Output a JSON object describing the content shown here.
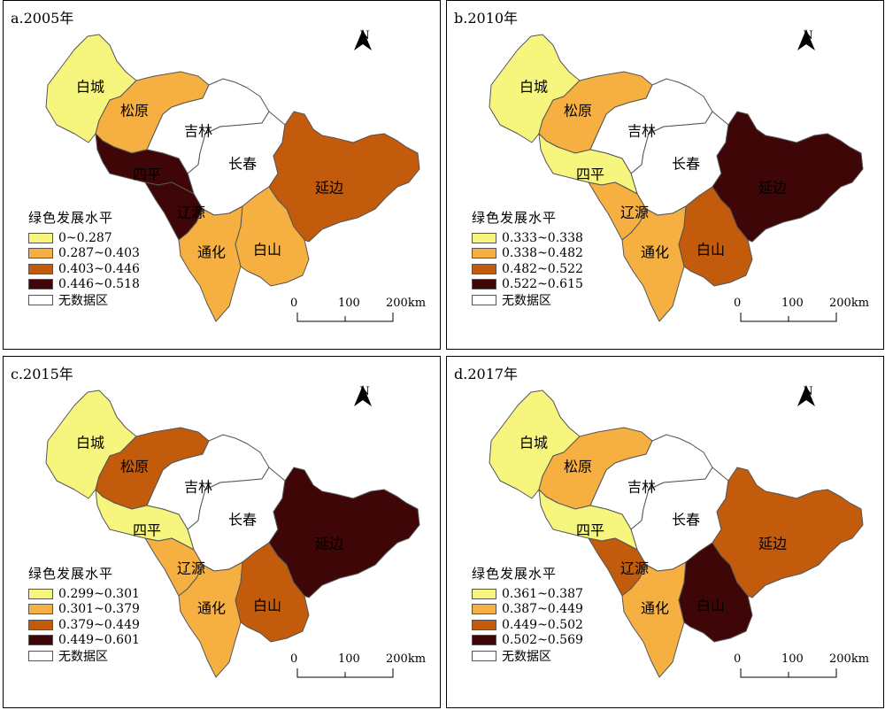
{
  "legend_title": "绿色发展水平",
  "north_label": "N",
  "scale_labels": [
    "0",
    "100",
    "200km"
  ],
  "colors": {
    "c1": "#f6f57e",
    "c2": "#f6b042",
    "c3": "#c25b0c",
    "c4": "#3e0606",
    "nodata": "#ffffff"
  },
  "region_names": {
    "baicheng": "白城",
    "songyuan": "松原",
    "jilin": "吉林",
    "changchun": "长春",
    "siping": "四平",
    "liaoyuan": "辽源",
    "tonghua": "通化",
    "baishan": "白山",
    "yanbian": "延边"
  },
  "panels": [
    {
      "title": "a.2005年",
      "legend": [
        "0~0.287",
        "0.287~0.403",
        "0.403~0.446",
        "0.446~0.518",
        "无数据区"
      ],
      "classes": {
        "baicheng": 1,
        "songyuan": 2,
        "siping": 4,
        "liaoyuan": 4,
        "tonghua": 2,
        "baishan": 2,
        "yanbian": 3,
        "jilin": 0,
        "changchun": 0
      }
    },
    {
      "title": "b.2010年",
      "legend": [
        "0.333~0.338",
        "0.338~0.482",
        "0.482~0.522",
        "0.522~0.615",
        "无数据区"
      ],
      "classes": {
        "baicheng": 1,
        "songyuan": 2,
        "siping": 1,
        "liaoyuan": 2,
        "tonghua": 2,
        "baishan": 3,
        "yanbian": 4,
        "jilin": 0,
        "changchun": 0
      }
    },
    {
      "title": "c.2015年",
      "legend": [
        "0.299~0.301",
        "0.301~0.379",
        "0.379~0.449",
        "0.449~0.601",
        "无数据区"
      ],
      "classes": {
        "baicheng": 1,
        "songyuan": 3,
        "siping": 1,
        "liaoyuan": 2,
        "tonghua": 2,
        "baishan": 3,
        "yanbian": 4,
        "jilin": 0,
        "changchun": 0
      }
    },
    {
      "title": "d.2017年",
      "legend": [
        "0.361~0.387",
        "0.387~0.449",
        "0.449~0.502",
        "0.502~0.569",
        "无数据区"
      ],
      "classes": {
        "baicheng": 1,
        "songyuan": 2,
        "siping": 1,
        "liaoyuan": 3,
        "tonghua": 2,
        "baishan": 4,
        "yanbian": 3,
        "jilin": 0,
        "changchun": 0
      }
    }
  ]
}
